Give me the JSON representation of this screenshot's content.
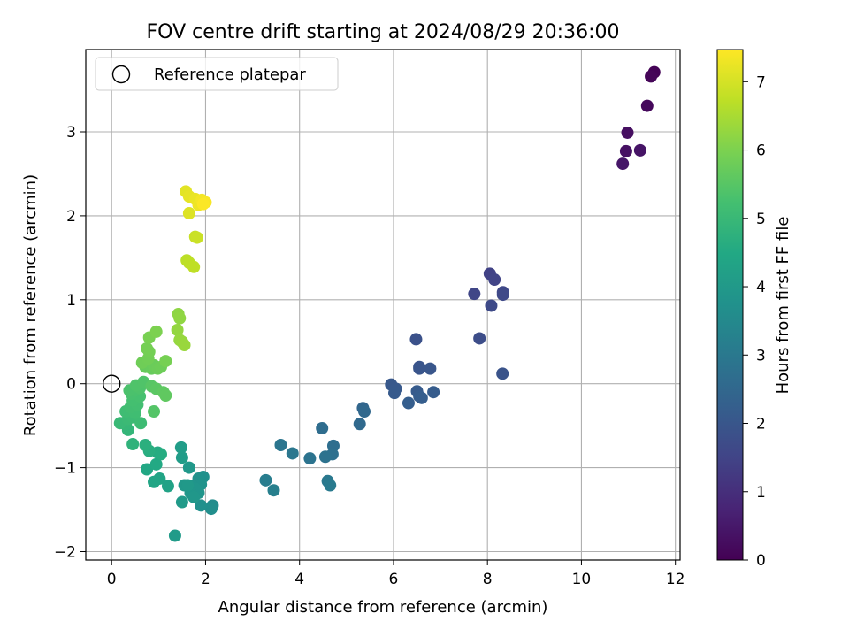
{
  "chart_data": {
    "type": "scatter",
    "title": "FOV centre drift starting at 2024/08/29 20:36:00",
    "xlabel": "Angular distance from reference (arcmin)",
    "ylabel": "Rotation from reference (arcmin)",
    "xlim": [
      -0.55,
      12.1
    ],
    "ylim": [
      -2.1,
      3.98
    ],
    "xticks": [
      "0",
      "2",
      "4",
      "6",
      "8",
      "10",
      "12"
    ],
    "yticks": [
      "−2",
      "−1",
      "0",
      "1",
      "2",
      "3"
    ],
    "grid": true,
    "legend": {
      "placement": "top-left",
      "entries": [
        "Reference platepar"
      ]
    },
    "reference_point": {
      "x": 0,
      "y": 0
    },
    "colorbar": {
      "label": "Hours from first FF file",
      "range": [
        0,
        7.47
      ],
      "ticks": [
        "0",
        "1",
        "2",
        "3",
        "4",
        "5",
        "6",
        "7"
      ],
      "colormap": "viridis"
    },
    "series": [
      {
        "points": [
          {
            "x": 11.55,
            "y": 3.71,
            "h": 0.05
          },
          {
            "x": 11.48,
            "y": 3.66,
            "h": 0.1
          },
          {
            "x": 11.4,
            "y": 3.31,
            "h": 0.15
          },
          {
            "x": 10.98,
            "y": 2.99,
            "h": 0.3
          },
          {
            "x": 10.95,
            "y": 2.77,
            "h": 0.35
          },
          {
            "x": 11.25,
            "y": 2.78,
            "h": 0.4
          },
          {
            "x": 10.88,
            "y": 2.62,
            "h": 0.45
          },
          {
            "x": 8.05,
            "y": 1.31,
            "h": 1.45
          },
          {
            "x": 8.15,
            "y": 1.24,
            "h": 1.5
          },
          {
            "x": 7.72,
            "y": 1.07,
            "h": 1.55
          },
          {
            "x": 8.33,
            "y": 1.09,
            "h": 1.6
          },
          {
            "x": 8.33,
            "y": 1.06,
            "h": 1.62
          },
          {
            "x": 8.08,
            "y": 0.93,
            "h": 1.65
          },
          {
            "x": 7.83,
            "y": 0.54,
            "h": 1.75
          },
          {
            "x": 6.48,
            "y": 0.53,
            "h": 1.85
          },
          {
            "x": 8.32,
            "y": 0.12,
            "h": 1.9
          },
          {
            "x": 6.55,
            "y": 0.2,
            "h": 1.95
          },
          {
            "x": 6.55,
            "y": 0.18,
            "h": 1.97
          },
          {
            "x": 6.78,
            "y": 0.18,
            "h": 2.0
          },
          {
            "x": 5.95,
            "y": -0.01,
            "h": 2.05
          },
          {
            "x": 6.05,
            "y": -0.06,
            "h": 2.08
          },
          {
            "x": 6.02,
            "y": -0.11,
            "h": 2.1
          },
          {
            "x": 6.5,
            "y": -0.09,
            "h": 2.12
          },
          {
            "x": 6.85,
            "y": -0.1,
            "h": 2.15
          },
          {
            "x": 6.55,
            "y": -0.15,
            "h": 2.18
          },
          {
            "x": 6.6,
            "y": -0.17,
            "h": 2.2
          },
          {
            "x": 6.32,
            "y": -0.23,
            "h": 2.22
          },
          {
            "x": 5.35,
            "y": -0.29,
            "h": 2.45
          },
          {
            "x": 5.38,
            "y": -0.33,
            "h": 2.5
          },
          {
            "x": 5.28,
            "y": -0.48,
            "h": 2.55
          },
          {
            "x": 4.48,
            "y": -0.53,
            "h": 2.65
          },
          {
            "x": 4.72,
            "y": -0.74,
            "h": 2.7
          },
          {
            "x": 4.7,
            "y": -0.84,
            "h": 2.75
          },
          {
            "x": 4.55,
            "y": -0.87,
            "h": 2.8
          },
          {
            "x": 4.22,
            "y": -0.89,
            "h": 2.85
          },
          {
            "x": 3.6,
            "y": -0.73,
            "h": 2.9
          },
          {
            "x": 3.85,
            "y": -0.83,
            "h": 2.95
          },
          {
            "x": 4.6,
            "y": -1.16,
            "h": 3.0
          },
          {
            "x": 4.65,
            "y": -1.21,
            "h": 3.05
          },
          {
            "x": 3.28,
            "y": -1.15,
            "h": 3.15
          },
          {
            "x": 3.45,
            "y": -1.27,
            "h": 3.2
          },
          {
            "x": 2.15,
            "y": -1.45,
            "h": 3.6
          },
          {
            "x": 2.12,
            "y": -1.49,
            "h": 3.65
          },
          {
            "x": 1.9,
            "y": -1.45,
            "h": 3.7
          },
          {
            "x": 1.95,
            "y": -1.11,
            "h": 3.75
          },
          {
            "x": 1.85,
            "y": -1.13,
            "h": 3.78
          },
          {
            "x": 1.9,
            "y": -1.2,
            "h": 3.8
          },
          {
            "x": 1.72,
            "y": -1.22,
            "h": 3.82
          },
          {
            "x": 1.78,
            "y": -1.25,
            "h": 3.85
          },
          {
            "x": 1.85,
            "y": -1.3,
            "h": 3.87
          },
          {
            "x": 1.68,
            "y": -1.3,
            "h": 3.9
          },
          {
            "x": 1.75,
            "y": -1.35,
            "h": 3.92
          },
          {
            "x": 1.65,
            "y": -1.0,
            "h": 3.95
          },
          {
            "x": 1.55,
            "y": -1.21,
            "h": 3.97
          },
          {
            "x": 1.62,
            "y": -1.21,
            "h": 4.0
          },
          {
            "x": 1.5,
            "y": -1.41,
            "h": 4.02
          },
          {
            "x": 1.35,
            "y": -1.81,
            "h": 4.05
          },
          {
            "x": 1.5,
            "y": -0.88,
            "h": 4.1
          },
          {
            "x": 1.48,
            "y": -0.76,
            "h": 4.12
          },
          {
            "x": 1.2,
            "y": -1.22,
            "h": 4.3
          },
          {
            "x": 1.02,
            "y": -1.13,
            "h": 4.35
          },
          {
            "x": 0.9,
            "y": -1.17,
            "h": 4.4
          },
          {
            "x": 0.75,
            "y": -1.02,
            "h": 4.45
          },
          {
            "x": 0.95,
            "y": -0.96,
            "h": 4.5
          },
          {
            "x": 0.98,
            "y": -0.82,
            "h": 4.55
          },
          {
            "x": 1.05,
            "y": -0.84,
            "h": 4.6
          },
          {
            "x": 0.8,
            "y": -0.8,
            "h": 4.65
          },
          {
            "x": 0.72,
            "y": -0.73,
            "h": 4.7
          },
          {
            "x": 0.45,
            "y": -0.72,
            "h": 4.8
          },
          {
            "x": 0.35,
            "y": -0.55,
            "h": 4.9
          },
          {
            "x": 0.3,
            "y": -0.48,
            "h": 4.95
          },
          {
            "x": 0.18,
            "y": -0.47,
            "h": 5.0
          },
          {
            "x": 0.35,
            "y": -0.42,
            "h": 5.05
          },
          {
            "x": 0.45,
            "y": -0.4,
            "h": 5.08
          },
          {
            "x": 0.62,
            "y": -0.47,
            "h": 5.1
          },
          {
            "x": 0.3,
            "y": -0.33,
            "h": 5.12
          },
          {
            "x": 0.5,
            "y": -0.35,
            "h": 5.15
          },
          {
            "x": 0.4,
            "y": -0.28,
            "h": 5.18
          },
          {
            "x": 0.55,
            "y": -0.25,
            "h": 5.2
          },
          {
            "x": 0.45,
            "y": -0.2,
            "h": 5.22
          },
          {
            "x": 0.6,
            "y": -0.15,
            "h": 5.25
          },
          {
            "x": 0.42,
            "y": -0.12,
            "h": 5.28
          },
          {
            "x": 0.5,
            "y": -0.08,
            "h": 5.3
          },
          {
            "x": 0.38,
            "y": -0.08,
            "h": 5.32
          },
          {
            "x": 0.6,
            "y": -0.05,
            "h": 5.35
          },
          {
            "x": 0.52,
            "y": -0.02,
            "h": 5.38
          },
          {
            "x": 0.68,
            "y": 0.02,
            "h": 5.4
          },
          {
            "x": 0.9,
            "y": -0.33,
            "h": 5.45
          },
          {
            "x": 0.85,
            "y": -0.03,
            "h": 5.5
          },
          {
            "x": 0.95,
            "y": -0.06,
            "h": 5.55
          },
          {
            "x": 1.1,
            "y": -0.1,
            "h": 5.6
          },
          {
            "x": 1.15,
            "y": -0.14,
            "h": 5.62
          },
          {
            "x": 0.72,
            "y": 0.2,
            "h": 5.7
          },
          {
            "x": 0.85,
            "y": 0.18,
            "h": 5.72
          },
          {
            "x": 0.9,
            "y": 0.22,
            "h": 5.75
          },
          {
            "x": 0.98,
            "y": 0.18,
            "h": 5.78
          },
          {
            "x": 1.05,
            "y": 0.2,
            "h": 5.8
          },
          {
            "x": 0.65,
            "y": 0.25,
            "h": 5.82
          },
          {
            "x": 0.78,
            "y": 0.3,
            "h": 5.85
          },
          {
            "x": 0.8,
            "y": 0.38,
            "h": 5.88
          },
          {
            "x": 0.75,
            "y": 0.42,
            "h": 5.9
          },
          {
            "x": 1.15,
            "y": 0.27,
            "h": 5.92
          },
          {
            "x": 0.8,
            "y": 0.55,
            "h": 5.95
          },
          {
            "x": 0.95,
            "y": 0.62,
            "h": 6.0
          },
          {
            "x": 1.42,
            "y": 0.83,
            "h": 6.2
          },
          {
            "x": 1.45,
            "y": 0.78,
            "h": 6.22
          },
          {
            "x": 1.4,
            "y": 0.64,
            "h": 6.25
          },
          {
            "x": 1.45,
            "y": 0.52,
            "h": 6.28
          },
          {
            "x": 1.5,
            "y": 0.5,
            "h": 6.3
          },
          {
            "x": 1.55,
            "y": 0.46,
            "h": 6.32
          },
          {
            "x": 1.6,
            "y": 1.47,
            "h": 6.7
          },
          {
            "x": 1.65,
            "y": 1.44,
            "h": 6.72
          },
          {
            "x": 1.75,
            "y": 1.39,
            "h": 6.75
          },
          {
            "x": 1.78,
            "y": 1.75,
            "h": 6.85
          },
          {
            "x": 1.82,
            "y": 1.74,
            "h": 6.88
          },
          {
            "x": 1.65,
            "y": 2.03,
            "h": 7.1
          },
          {
            "x": 1.58,
            "y": 2.29,
            "h": 7.15
          },
          {
            "x": 1.65,
            "y": 2.23,
            "h": 7.2
          },
          {
            "x": 1.78,
            "y": 2.2,
            "h": 7.25
          },
          {
            "x": 1.85,
            "y": 2.13,
            "h": 7.3
          },
          {
            "x": 1.92,
            "y": 2.19,
            "h": 7.35
          },
          {
            "x": 2.0,
            "y": 2.16,
            "h": 7.4
          },
          {
            "x": 1.95,
            "y": 2.14,
            "h": 7.45
          }
        ]
      }
    ]
  }
}
